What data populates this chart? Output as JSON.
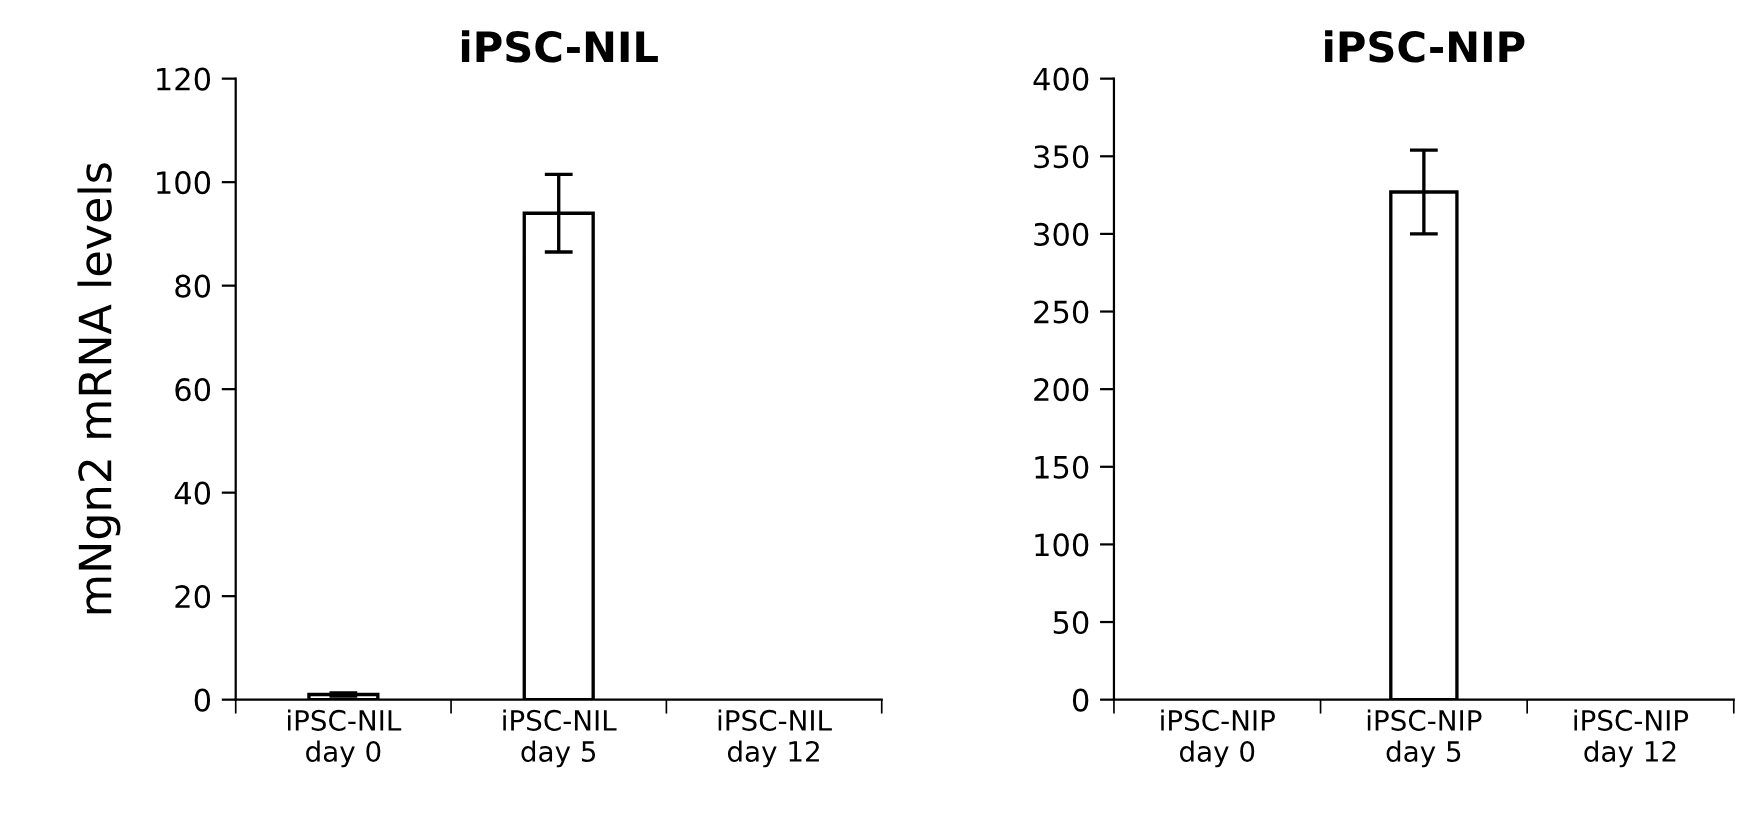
{
  "chart_data": [
    {
      "type": "bar",
      "title": "iPSC-NIL",
      "ylabel": "mNgn2 mRNA levels",
      "categories": [
        "iPSC-NIL\nday 0",
        "iPSC-NIL\nday 5",
        "iPSC-NIL\nday 12"
      ],
      "values": [
        1,
        94,
        null
      ],
      "errors": [
        0.3,
        7.5,
        null
      ],
      "color": "#ffffff",
      "ylim": [
        0,
        120
      ],
      "yticks": [
        0,
        20,
        40,
        60,
        80,
        100,
        120
      ],
      "grid": false,
      "legend": false
    },
    {
      "type": "bar",
      "title": "iPSC-NIP",
      "categories": [
        "iPSC-NIP\nday 0",
        "iPSC-NIP\nday 5",
        "iPSC-NIP\nday 12"
      ],
      "values": [
        null,
        327,
        null
      ],
      "errors": [
        null,
        27,
        null
      ],
      "color": "#ffffff",
      "ylim": [
        0,
        400
      ],
      "yticks": [
        0,
        50,
        100,
        150,
        200,
        250,
        300,
        350,
        400
      ],
      "grid": false,
      "legend": false
    }
  ]
}
